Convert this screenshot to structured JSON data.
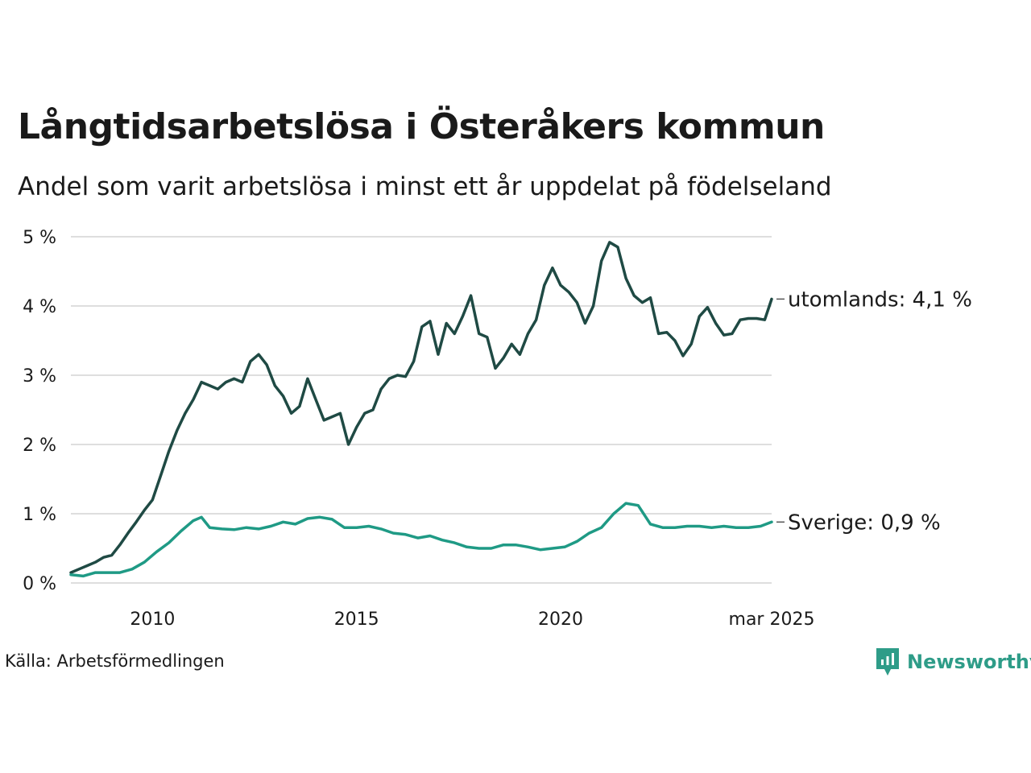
{
  "title": "Långtidsarbetslösa i Österåkers kommun",
  "subtitle": "Andel som varit arbetslösa i minst ett år uppdelat på födelseland",
  "source": "Källa: Arbetsförmedlingen",
  "brand": "Newsworthy",
  "colors": {
    "utomlands": "#1f4a44",
    "sverige": "#1f9a85",
    "grid": "#dedede",
    "brand": "#2e9c88"
  },
  "chart_data": {
    "type": "line",
    "title": "Långtidsarbetslösa i Österåkers kommun",
    "subtitle": "Andel som varit arbetslösa i minst ett år uppdelat på födelseland",
    "x_ticks": [
      {
        "label": "2010",
        "value": 2010.0
      },
      {
        "label": "2015",
        "value": 2015.0
      },
      {
        "label": "2020",
        "value": 2020.0
      },
      {
        "label": "mar 2025",
        "value": 2025.17
      }
    ],
    "y_ticks": [
      {
        "label": "0 %",
        "value": 0
      },
      {
        "label": "1 %",
        "value": 1
      },
      {
        "label": "2 %",
        "value": 2
      },
      {
        "label": "3 %",
        "value": 3
      },
      {
        "label": "4 %",
        "value": 4
      },
      {
        "label": "5 %",
        "value": 5
      }
    ],
    "xlim": [
      2008.0,
      2025.17
    ],
    "ylim": [
      0,
      5
    ],
    "grid": true,
    "series": [
      {
        "key": "utomlands",
        "end_label": "utomlands: 4,1 %",
        "points": [
          [
            2008.0,
            0.15
          ],
          [
            2008.2,
            0.2
          ],
          [
            2008.4,
            0.25
          ],
          [
            2008.6,
            0.3
          ],
          [
            2008.8,
            0.37
          ],
          [
            2009.0,
            0.4
          ],
          [
            2009.2,
            0.55
          ],
          [
            2009.4,
            0.72
          ],
          [
            2009.6,
            0.88
          ],
          [
            2009.8,
            1.05
          ],
          [
            2010.0,
            1.2
          ],
          [
            2010.2,
            1.55
          ],
          [
            2010.4,
            1.9
          ],
          [
            2010.6,
            2.2
          ],
          [
            2010.8,
            2.45
          ],
          [
            2011.0,
            2.65
          ],
          [
            2011.2,
            2.9
          ],
          [
            2011.4,
            2.85
          ],
          [
            2011.6,
            2.8
          ],
          [
            2011.8,
            2.9
          ],
          [
            2012.0,
            2.95
          ],
          [
            2012.2,
            2.9
          ],
          [
            2012.4,
            3.2
          ],
          [
            2012.6,
            3.3
          ],
          [
            2012.8,
            3.15
          ],
          [
            2013.0,
            2.85
          ],
          [
            2013.2,
            2.7
          ],
          [
            2013.4,
            2.45
          ],
          [
            2013.6,
            2.55
          ],
          [
            2013.8,
            2.95
          ],
          [
            2014.0,
            2.65
          ],
          [
            2014.2,
            2.35
          ],
          [
            2014.4,
            2.4
          ],
          [
            2014.6,
            2.45
          ],
          [
            2014.8,
            2.0
          ],
          [
            2015.0,
            2.25
          ],
          [
            2015.2,
            2.45
          ],
          [
            2015.4,
            2.5
          ],
          [
            2015.6,
            2.8
          ],
          [
            2015.8,
            2.95
          ],
          [
            2016.0,
            3.0
          ],
          [
            2016.2,
            2.98
          ],
          [
            2016.4,
            3.2
          ],
          [
            2016.6,
            3.7
          ],
          [
            2016.8,
            3.78
          ],
          [
            2017.0,
            3.3
          ],
          [
            2017.2,
            3.75
          ],
          [
            2017.4,
            3.6
          ],
          [
            2017.6,
            3.85
          ],
          [
            2017.8,
            4.15
          ],
          [
            2018.0,
            3.6
          ],
          [
            2018.2,
            3.55
          ],
          [
            2018.4,
            3.1
          ],
          [
            2018.6,
            3.25
          ],
          [
            2018.8,
            3.45
          ],
          [
            2019.0,
            3.3
          ],
          [
            2019.2,
            3.6
          ],
          [
            2019.4,
            3.8
          ],
          [
            2019.6,
            4.3
          ],
          [
            2019.8,
            4.55
          ],
          [
            2020.0,
            4.3
          ],
          [
            2020.2,
            4.2
          ],
          [
            2020.4,
            4.05
          ],
          [
            2020.6,
            3.75
          ],
          [
            2020.8,
            4.0
          ],
          [
            2021.0,
            4.65
          ],
          [
            2021.2,
            4.92
          ],
          [
            2021.4,
            4.85
          ],
          [
            2021.6,
            4.4
          ],
          [
            2021.8,
            4.15
          ],
          [
            2022.0,
            4.05
          ],
          [
            2022.2,
            4.12
          ],
          [
            2022.4,
            3.6
          ],
          [
            2022.6,
            3.62
          ],
          [
            2022.8,
            3.5
          ],
          [
            2023.0,
            3.28
          ],
          [
            2023.2,
            3.45
          ],
          [
            2023.4,
            3.85
          ],
          [
            2023.6,
            3.98
          ],
          [
            2023.8,
            3.75
          ],
          [
            2024.0,
            3.58
          ],
          [
            2024.2,
            3.6
          ],
          [
            2024.4,
            3.8
          ],
          [
            2024.6,
            3.82
          ],
          [
            2024.8,
            3.82
          ],
          [
            2025.0,
            3.8
          ],
          [
            2025.17,
            4.1
          ]
        ]
      },
      {
        "key": "sverige",
        "end_label": "Sverige: 0,9 %",
        "points": [
          [
            2008.0,
            0.12
          ],
          [
            2008.3,
            0.1
          ],
          [
            2008.6,
            0.15
          ],
          [
            2008.9,
            0.15
          ],
          [
            2009.2,
            0.15
          ],
          [
            2009.5,
            0.2
          ],
          [
            2009.8,
            0.3
          ],
          [
            2010.1,
            0.45
          ],
          [
            2010.4,
            0.58
          ],
          [
            2010.7,
            0.75
          ],
          [
            2011.0,
            0.9
          ],
          [
            2011.2,
            0.95
          ],
          [
            2011.4,
            0.8
          ],
          [
            2011.7,
            0.78
          ],
          [
            2012.0,
            0.77
          ],
          [
            2012.3,
            0.8
          ],
          [
            2012.6,
            0.78
          ],
          [
            2012.9,
            0.82
          ],
          [
            2013.2,
            0.88
          ],
          [
            2013.5,
            0.85
          ],
          [
            2013.8,
            0.93
          ],
          [
            2014.1,
            0.95
          ],
          [
            2014.4,
            0.92
          ],
          [
            2014.7,
            0.8
          ],
          [
            2015.0,
            0.8
          ],
          [
            2015.3,
            0.82
          ],
          [
            2015.6,
            0.78
          ],
          [
            2015.9,
            0.72
          ],
          [
            2016.2,
            0.7
          ],
          [
            2016.5,
            0.65
          ],
          [
            2016.8,
            0.68
          ],
          [
            2017.1,
            0.62
          ],
          [
            2017.4,
            0.58
          ],
          [
            2017.7,
            0.52
          ],
          [
            2018.0,
            0.5
          ],
          [
            2018.3,
            0.5
          ],
          [
            2018.6,
            0.55
          ],
          [
            2018.9,
            0.55
          ],
          [
            2019.2,
            0.52
          ],
          [
            2019.5,
            0.48
          ],
          [
            2019.8,
            0.5
          ],
          [
            2020.1,
            0.52
          ],
          [
            2020.4,
            0.6
          ],
          [
            2020.7,
            0.72
          ],
          [
            2021.0,
            0.8
          ],
          [
            2021.3,
            1.0
          ],
          [
            2021.6,
            1.15
          ],
          [
            2021.9,
            1.12
          ],
          [
            2022.2,
            0.85
          ],
          [
            2022.5,
            0.8
          ],
          [
            2022.8,
            0.8
          ],
          [
            2023.1,
            0.82
          ],
          [
            2023.4,
            0.82
          ],
          [
            2023.7,
            0.8
          ],
          [
            2024.0,
            0.82
          ],
          [
            2024.3,
            0.8
          ],
          [
            2024.6,
            0.8
          ],
          [
            2024.9,
            0.82
          ],
          [
            2025.17,
            0.88
          ]
        ]
      }
    ]
  }
}
